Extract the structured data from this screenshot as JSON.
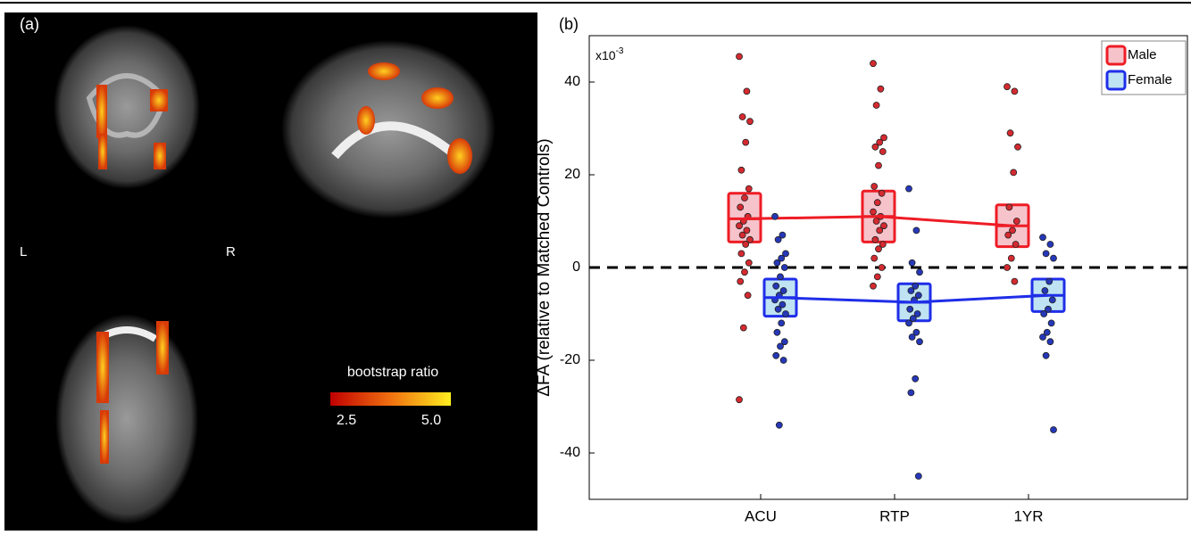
{
  "panel_a": {
    "label": "(a)",
    "left": "L",
    "right": "R",
    "colorbar": {
      "title": "bootstrap ratio",
      "low": "2.5",
      "high": "5.0"
    }
  },
  "chart_data": {
    "type": "strip",
    "panel_label": "(b)",
    "y_multiplier": {
      "base": "x10",
      "exponent": "-3"
    },
    "y_label": "ΔFA (relative to Matched Controls)",
    "categories": [
      "ACU",
      "RTP",
      "1YR"
    ],
    "ylim": [
      -50,
      50
    ],
    "yticks": [
      -40,
      -20,
      0,
      20,
      40
    ],
    "reference_line": 0,
    "legend": "top-right",
    "series": [
      {
        "name": "Male",
        "color": "#ee1c25",
        "fill": "#f6c3cb",
        "point_color": "#d42a30",
        "mean": [
          10.5,
          11,
          9
        ],
        "upper": [
          16,
          16.5,
          13.5
        ],
        "lower": [
          5.5,
          5.5,
          4.5
        ],
        "points": [
          [
            45.5,
            38,
            32.5,
            31.5,
            27,
            21,
            17,
            15,
            13,
            11,
            10,
            9,
            8,
            7,
            6,
            5,
            3,
            1,
            -1,
            -3,
            -6,
            -13,
            -28.5
          ],
          [
            44,
            38.5,
            35,
            28,
            27,
            26,
            25,
            22,
            17.5,
            16,
            14,
            12,
            11,
            10,
            9,
            8,
            6,
            5,
            4,
            2,
            0,
            -2,
            -4
          ],
          [
            39,
            38,
            29,
            26,
            20.5,
            13,
            10,
            8,
            7,
            5,
            2,
            0,
            -3
          ]
        ]
      },
      {
        "name": "Female",
        "color": "#1f2ee8",
        "fill": "#bfe3f3",
        "point_color": "#2638b8",
        "mean": [
          -6.5,
          -7.5,
          -6
        ],
        "upper": [
          -2.5,
          -3.5,
          -2.5
        ],
        "lower": [
          -10.5,
          -11.5,
          -9.5
        ],
        "points": [
          [
            11,
            7,
            6,
            3,
            2,
            1,
            0,
            -2,
            -4,
            -5,
            -6,
            -7,
            -8,
            -9,
            -10,
            -12,
            -14,
            -16,
            -17,
            -19,
            -20,
            -34
          ],
          [
            17,
            8,
            1,
            -1,
            -4,
            -5,
            -6,
            -7,
            -9,
            -10,
            -11,
            -12,
            -14,
            -15,
            -16,
            -24,
            -27,
            -45
          ],
          [
            6.5,
            5,
            3,
            2,
            -3,
            -5,
            -7,
            -9,
            -10,
            -12,
            -14,
            -15,
            -16,
            -19,
            -35
          ]
        ]
      }
    ]
  }
}
